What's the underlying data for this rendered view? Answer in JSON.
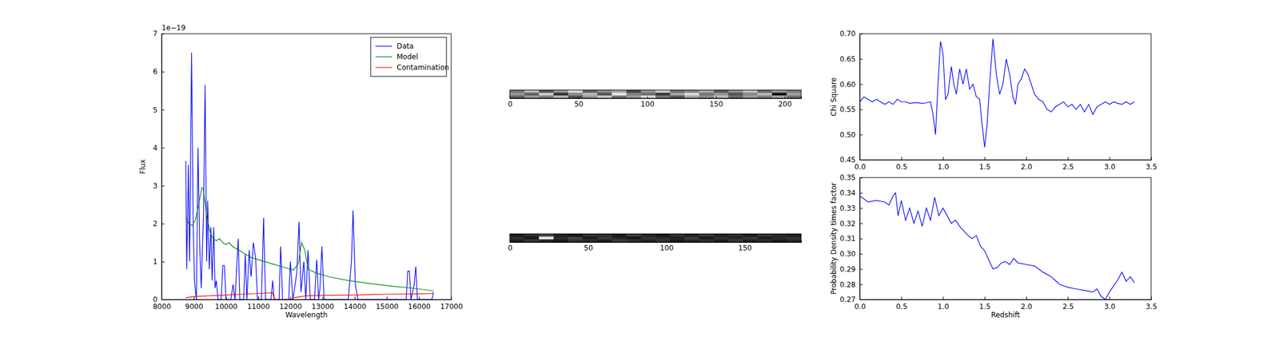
{
  "chart_data": [
    {
      "type": "line",
      "x_label": "Wavelength",
      "y_label": "Flux",
      "y_offset_label": "1e−19",
      "xlim": [
        8000,
        17000
      ],
      "xticks": [
        8000,
        9000,
        10000,
        11000,
        12000,
        13000,
        14000,
        15000,
        16000,
        17000
      ],
      "ylim": [
        0,
        7
      ],
      "yticks": [
        0,
        1,
        2,
        3,
        4,
        5,
        6,
        7
      ],
      "legend": "upper right",
      "series": [
        {
          "name": "Data",
          "color": "#0000ff",
          "x": [
            8750,
            8780,
            8830,
            8870,
            8930,
            8980,
            9020,
            9080,
            9130,
            9180,
            9230,
            9300,
            9350,
            9400,
            9430,
            9480,
            9530,
            9570,
            9620,
            9660,
            9700,
            9750,
            9850,
            9900,
            9950,
            10000,
            10150,
            10220,
            10280,
            10380,
            10430,
            10550,
            10600,
            10650,
            10720,
            10780,
            10850,
            10920,
            10980,
            11100,
            11170,
            11230,
            11400,
            11450,
            11500,
            11650,
            11700,
            11760,
            11950,
            12000,
            12080,
            12200,
            12270,
            12330,
            12420,
            12480,
            12550,
            12620,
            12750,
            12820,
            12880,
            12920,
            12980,
            13050,
            13800,
            13900,
            13950,
            14020,
            14100,
            15600,
            15650,
            15700,
            15750,
            15850,
            15900,
            15950,
            16400,
            16450
          ],
          "values": [
            3.65,
            0.8,
            3.55,
            1.0,
            6.5,
            2.0,
            0.5,
            0,
            4.0,
            1.5,
            0.3,
            2.2,
            5.65,
            1.0,
            2.6,
            0.8,
            1.9,
            0.5,
            1.9,
            0.3,
            0.5,
            0,
            0,
            0.9,
            0.9,
            0,
            0,
            0.4,
            0,
            1.6,
            0,
            0,
            1.2,
            0,
            1.3,
            0.6,
            1.5,
            1.1,
            0,
            0,
            2.15,
            0,
            0,
            0.5,
            0,
            0,
            1.4,
            0,
            0,
            1.0,
            0,
            0.7,
            2.05,
            0.2,
            1.0,
            0,
            1.3,
            0,
            0,
            1.05,
            0,
            0.3,
            1.4,
            0,
            0,
            1.0,
            2.35,
            0.4,
            0,
            0,
            0.75,
            0.75,
            0,
            0.4,
            0.87,
            0,
            0,
            0.2
          ]
        },
        {
          "name": "Model",
          "color": "#008000",
          "x": [
            8750,
            8850,
            8950,
            9050,
            9150,
            9250,
            9300,
            9400,
            9500,
            9600,
            9700,
            9800,
            9900,
            10000,
            10100,
            10200,
            10400,
            10600,
            10800,
            11000,
            11400,
            11800,
            12100,
            12250,
            12350,
            12450,
            12550,
            12800,
            13200,
            13800,
            14500,
            15200,
            15800,
            16450
          ],
          "values": [
            2.15,
            2.0,
            1.95,
            2.1,
            2.5,
            2.95,
            2.9,
            2.2,
            1.8,
            1.6,
            1.55,
            1.6,
            1.5,
            1.45,
            1.5,
            1.4,
            1.3,
            1.2,
            1.1,
            1.05,
            0.95,
            0.85,
            0.78,
            0.95,
            1.5,
            1.3,
            0.8,
            0.7,
            0.6,
            0.5,
            0.42,
            0.35,
            0.3,
            0.23
          ]
        },
        {
          "name": "Contamination",
          "color": "#ff0000",
          "x": [
            8750,
            9000,
            9500,
            10000,
            10500,
            11000,
            11450,
            11500,
            12000,
            12100,
            12500,
            13000,
            14000,
            14500,
            15000,
            16000,
            16450
          ],
          "values": [
            0.05,
            0.08,
            0.1,
            0.12,
            0.14,
            0.16,
            0.18,
            0,
            0,
            0.05,
            0.1,
            0.11,
            0.12,
            0.13,
            0.14,
            0.15,
            0.16
          ]
        }
      ]
    },
    {
      "type": "image",
      "xlim": [
        0,
        212
      ],
      "xticks": [
        0,
        50,
        100,
        150,
        200
      ],
      "cells": [
        [
          0.45,
          0.55,
          0.4,
          0.5,
          0.6,
          0.42,
          0.48,
          0.52,
          0.38,
          0.5,
          0.58,
          0.44,
          0.47,
          0.53,
          0.41,
          0.49,
          0.56,
          0.43,
          0.5,
          0.46
        ],
        [
          0.5,
          0.42,
          0.58,
          0.35,
          0.48,
          0.55,
          0.4,
          0.62,
          0.47,
          0.44,
          0.36,
          0.52,
          0.6,
          0.45,
          0.5,
          0.4,
          0.48,
          0.55,
          0.3,
          0.52
        ],
        [
          0.42,
          0.5,
          0.46,
          0.55,
          0.4,
          0.5,
          0.57,
          0.44,
          0.5,
          0.6,
          0.45,
          0.4,
          0.52,
          0.48,
          0.55,
          0.43,
          0.5,
          0.46,
          0.52,
          0.44
        ]
      ]
    },
    {
      "type": "image",
      "xlim": [
        0,
        186
      ],
      "xticks": [
        0,
        50,
        100,
        150
      ],
      "cells": [
        [
          0.4,
          0.45,
          0.5,
          0.42,
          0.38,
          0.46,
          0.44,
          0.4,
          0.48,
          0.43,
          0.39,
          0.45,
          0.41,
          0.47,
          0.42,
          0.44,
          0.4,
          0.46,
          0.43,
          0.41
        ],
        [
          0.45,
          0.4,
          0.9,
          0.44,
          0.5,
          0.41,
          0.47,
          0.43,
          0.39,
          0.46,
          0.44,
          0.42,
          0.48,
          0.4,
          0.45,
          0.43,
          0.47,
          0.41,
          0.44,
          0.46
        ],
        [
          0.42,
          0.47,
          0.43,
          0.4,
          0.46,
          0.44,
          0.41,
          0.48,
          0.45,
          0.42,
          0.46,
          0.4,
          0.43,
          0.45,
          0.41,
          0.47,
          0.42,
          0.44,
          0.4,
          0.43
        ]
      ]
    },
    {
      "type": "line",
      "y_label": "Chi Square",
      "color": "#0000ff",
      "xlim": [
        0,
        3.5
      ],
      "xticks": [
        {
          "value": 0,
          "label": "0.0"
        },
        0.5,
        {
          "value": 1,
          "label": "1.0"
        },
        1.5,
        {
          "value": 2,
          "label": "2.0"
        },
        2.5,
        {
          "value": 3,
          "label": "3.0"
        },
        3.5
      ],
      "ylim": [
        0.45,
        0.7
      ],
      "yticks": [
        0.45,
        {
          "value": 0.5,
          "label": "0.50"
        },
        0.55,
        {
          "value": 0.6,
          "label": "0.60"
        },
        0.65,
        {
          "value": 0.7,
          "label": "0.70"
        }
      ],
      "x": [
        0,
        0.05,
        0.1,
        0.15,
        0.2,
        0.25,
        0.3,
        0.35,
        0.4,
        0.45,
        0.5,
        0.55,
        0.6,
        0.65,
        0.7,
        0.75,
        0.8,
        0.85,
        0.88,
        0.91,
        0.94,
        0.97,
        1.0,
        1.03,
        1.06,
        1.1,
        1.13,
        1.16,
        1.2,
        1.24,
        1.28,
        1.32,
        1.36,
        1.4,
        1.44,
        1.47,
        1.5,
        1.53,
        1.56,
        1.6,
        1.64,
        1.68,
        1.72,
        1.76,
        1.8,
        1.84,
        1.87,
        1.9,
        1.94,
        1.98,
        2.02,
        2.06,
        2.1,
        2.15,
        2.2,
        2.25,
        2.3,
        2.35,
        2.4,
        2.45,
        2.5,
        2.55,
        2.6,
        2.65,
        2.7,
        2.75,
        2.8,
        2.85,
        2.9,
        2.95,
        3.0,
        3.05,
        3.1,
        3.15,
        3.2,
        3.25,
        3.3
      ],
      "values": [
        0.565,
        0.575,
        0.57,
        0.565,
        0.57,
        0.565,
        0.56,
        0.565,
        0.56,
        0.57,
        0.565,
        0.565,
        0.562,
        0.563,
        0.563,
        0.562,
        0.563,
        0.565,
        0.54,
        0.5,
        0.6,
        0.685,
        0.66,
        0.57,
        0.58,
        0.635,
        0.6,
        0.58,
        0.63,
        0.6,
        0.63,
        0.59,
        0.6,
        0.575,
        0.57,
        0.52,
        0.475,
        0.52,
        0.6,
        0.69,
        0.62,
        0.58,
        0.6,
        0.65,
        0.62,
        0.575,
        0.56,
        0.6,
        0.61,
        0.63,
        0.62,
        0.6,
        0.58,
        0.57,
        0.565,
        0.55,
        0.545,
        0.555,
        0.56,
        0.565,
        0.555,
        0.56,
        0.55,
        0.56,
        0.545,
        0.56,
        0.54,
        0.555,
        0.56,
        0.565,
        0.56,
        0.565,
        0.562,
        0.56,
        0.565,
        0.56,
        0.565
      ]
    },
    {
      "type": "line",
      "x_label": "Redshift",
      "y_label": "Probability Density times factor",
      "color": "#0000ff",
      "xlim": [
        0,
        3.5
      ],
      "xticks": [
        {
          "value": 0,
          "label": "0.0"
        },
        0.5,
        {
          "value": 1,
          "label": "1.0"
        },
        1.5,
        {
          "value": 2,
          "label": "2.0"
        },
        2.5,
        {
          "value": 3,
          "label": "3.0"
        },
        3.5
      ],
      "ylim": [
        0.27,
        0.35
      ],
      "yticks": [
        0.27,
        0.28,
        0.29,
        {
          "value": 0.3,
          "label": "0.30"
        },
        0.31,
        0.32,
        0.33,
        0.34,
        0.35
      ],
      "x": [
        0,
        0.05,
        0.1,
        0.2,
        0.3,
        0.35,
        0.4,
        0.43,
        0.46,
        0.5,
        0.55,
        0.6,
        0.65,
        0.7,
        0.75,
        0.8,
        0.85,
        0.9,
        0.95,
        1.0,
        1.05,
        1.1,
        1.15,
        1.2,
        1.25,
        1.3,
        1.35,
        1.4,
        1.45,
        1.5,
        1.55,
        1.6,
        1.65,
        1.7,
        1.75,
        1.8,
        1.85,
        1.9,
        2.0,
        2.1,
        2.2,
        2.3,
        2.4,
        2.5,
        2.6,
        2.7,
        2.8,
        2.85,
        2.9,
        2.95,
        3.0,
        3.05,
        3.1,
        3.15,
        3.2,
        3.25,
        3.3
      ],
      "values": [
        0.338,
        0.336,
        0.334,
        0.335,
        0.334,
        0.332,
        0.338,
        0.34,
        0.325,
        0.335,
        0.322,
        0.33,
        0.32,
        0.328,
        0.318,
        0.33,
        0.322,
        0.337,
        0.325,
        0.33,
        0.325,
        0.32,
        0.322,
        0.318,
        0.315,
        0.312,
        0.31,
        0.312,
        0.305,
        0.302,
        0.296,
        0.29,
        0.291,
        0.294,
        0.295,
        0.293,
        0.297,
        0.294,
        0.293,
        0.292,
        0.288,
        0.285,
        0.28,
        0.278,
        0.277,
        0.276,
        0.275,
        0.277,
        0.272,
        0.27,
        0.275,
        0.279,
        0.283,
        0.288,
        0.282,
        0.285,
        0.281
      ]
    }
  ]
}
